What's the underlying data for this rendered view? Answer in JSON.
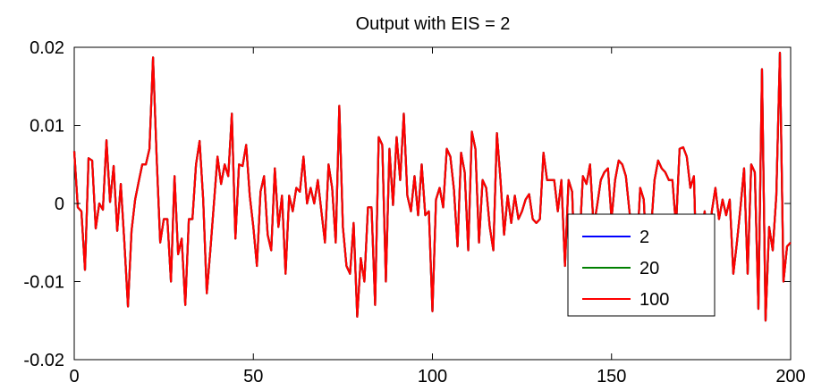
{
  "chart_data": {
    "type": "line",
    "title": "Output with EIS = 2",
    "xlabel": "",
    "ylabel": "",
    "xlim": [
      0,
      200
    ],
    "ylim": [
      -0.02,
      0.02
    ],
    "xticks": [
      0,
      50,
      100,
      150,
      200
    ],
    "xtick_labels": [
      "0",
      "50",
      "100",
      "150",
      "200"
    ],
    "yticks": [
      -0.02,
      -0.01,
      0,
      0.01,
      0.02
    ],
    "ytick_labels": [
      "-0.02",
      "-0.01",
      "0",
      "0.01",
      "0.02"
    ],
    "grid": false,
    "legend_position": "lower-right",
    "x_start": 0,
    "x_step": 1,
    "series": [
      {
        "name": "2",
        "color": "#0000ff",
        "values": [
          0.0067,
          -0.0005,
          -0.001,
          -0.0085,
          0.0058,
          0.0055,
          -0.0032,
          0.0,
          -0.0008,
          0.0081,
          0.0002,
          0.0048,
          -0.0035,
          0.0025,
          -0.005,
          -0.0132,
          -0.0035,
          0.0005,
          0.0028,
          0.005,
          0.005,
          0.007,
          0.0187,
          0.006,
          -0.005,
          -0.002,
          -0.002,
          -0.01,
          0.0035,
          -0.0065,
          -0.0045,
          -0.013,
          -0.002,
          -0.002,
          0.005,
          0.008,
          0.0005,
          -0.0115,
          -0.006,
          0.0,
          0.006,
          0.0025,
          0.005,
          0.0035,
          0.0115,
          -0.0045,
          0.005,
          0.0048,
          0.0075,
          0.001,
          -0.003,
          -0.008,
          0.0015,
          0.0035,
          -0.004,
          -0.006,
          0.0045,
          -0.003,
          0.001,
          -0.009,
          0.001,
          -0.001,
          0.002,
          0.0015,
          0.006,
          0.0,
          0.002,
          0.0,
          0.003,
          -0.001,
          -0.005,
          0.005,
          0.002,
          -0.005,
          0.0125,
          -0.003,
          -0.008,
          -0.009,
          -0.0025,
          -0.0145,
          -0.007,
          -0.01,
          -0.0005,
          -0.0005,
          -0.013,
          0.0085,
          0.0075,
          -0.01,
          0.007,
          -0.0002,
          0.0085,
          0.003,
          0.0115,
          0.001,
          -0.001,
          0.0035,
          -0.0015,
          0.005,
          -0.0015,
          -0.001,
          -0.0138,
          0.0005,
          0.002,
          -0.0005,
          0.007,
          0.006,
          0.0018,
          -0.0055,
          0.0065,
          0.004,
          -0.006,
          0.0092,
          0.007,
          -0.005,
          0.003,
          0.002,
          -0.003,
          -0.006,
          0.009,
          0.003,
          -0.004,
          0.001,
          -0.0025,
          0.001,
          -0.002,
          -0.001,
          0.0005,
          0.0012,
          -0.002,
          -0.0025,
          -0.002,
          0.0065,
          0.003,
          0.003,
          0.003,
          -0.001,
          0.003,
          -0.008,
          0.003,
          0.0015,
          -0.0115,
          -0.0055,
          0.0035,
          0.0025,
          0.005,
          -0.003,
          -0.0002,
          0.003,
          0.004,
          0.0045,
          -0.002,
          0.003,
          0.0055,
          0.005,
          0.0035,
          -0.001,
          -0.0045,
          -0.007,
          0.002,
          0.0005,
          -0.009,
          -0.0035,
          0.003,
          0.0055,
          0.0045,
          0.004,
          0.003,
          0.003,
          -0.003,
          0.007,
          0.0072,
          0.006,
          0.002,
          0.0035,
          -0.013,
          -0.004,
          -0.001,
          -0.007,
          -0.001,
          0.002,
          -0.002,
          0.0005,
          -0.0015,
          0.0005,
          -0.009,
          -0.005,
          -0.0005,
          0.0045,
          -0.009,
          0.005,
          0.004,
          -0.0135,
          0.0172,
          -0.015,
          -0.003,
          -0.006,
          0.001,
          0.0193,
          -0.01,
          -0.0055,
          -0.005
        ]
      },
      {
        "name": "20",
        "color": "#008000",
        "values": [
          0.0067,
          -0.0005,
          -0.001,
          -0.0085,
          0.0058,
          0.0055,
          -0.0032,
          0.0,
          -0.0008,
          0.0081,
          0.0002,
          0.0048,
          -0.0035,
          0.0025,
          -0.005,
          -0.0132,
          -0.0035,
          0.0005,
          0.0028,
          0.005,
          0.005,
          0.007,
          0.0187,
          0.006,
          -0.005,
          -0.002,
          -0.002,
          -0.01,
          0.0035,
          -0.0065,
          -0.0045,
          -0.013,
          -0.002,
          -0.002,
          0.005,
          0.008,
          0.0005,
          -0.0115,
          -0.006,
          0.0,
          0.006,
          0.0025,
          0.005,
          0.0035,
          0.0115,
          -0.0045,
          0.005,
          0.0048,
          0.0075,
          0.001,
          -0.003,
          -0.008,
          0.0015,
          0.0035,
          -0.004,
          -0.006,
          0.0045,
          -0.003,
          0.001,
          -0.009,
          0.001,
          -0.001,
          0.002,
          0.0015,
          0.006,
          0.0,
          0.002,
          0.0,
          0.003,
          -0.001,
          -0.005,
          0.005,
          0.002,
          -0.005,
          0.0125,
          -0.003,
          -0.008,
          -0.009,
          -0.0025,
          -0.0145,
          -0.007,
          -0.01,
          -0.0005,
          -0.0005,
          -0.013,
          0.0085,
          0.0075,
          -0.01,
          0.007,
          -0.0002,
          0.0085,
          0.003,
          0.0115,
          0.001,
          -0.001,
          0.0035,
          -0.0015,
          0.005,
          -0.0015,
          -0.001,
          -0.0138,
          0.0005,
          0.002,
          -0.0005,
          0.007,
          0.006,
          0.0018,
          -0.0055,
          0.0065,
          0.004,
          -0.006,
          0.0092,
          0.007,
          -0.005,
          0.003,
          0.002,
          -0.003,
          -0.006,
          0.009,
          0.003,
          -0.004,
          0.001,
          -0.0025,
          0.001,
          -0.002,
          -0.001,
          0.0005,
          0.0012,
          -0.002,
          -0.0025,
          -0.002,
          0.0065,
          0.003,
          0.003,
          0.003,
          -0.001,
          0.003,
          -0.008,
          0.003,
          0.0015,
          -0.0115,
          -0.0055,
          0.0035,
          0.0025,
          0.005,
          -0.003,
          -0.0002,
          0.003,
          0.004,
          0.0045,
          -0.002,
          0.003,
          0.0055,
          0.005,
          0.0035,
          -0.001,
          -0.0045,
          -0.007,
          0.002,
          0.0005,
          -0.009,
          -0.0035,
          0.003,
          0.0055,
          0.0045,
          0.004,
          0.003,
          0.003,
          -0.003,
          0.007,
          0.0072,
          0.006,
          0.002,
          0.0035,
          -0.013,
          -0.004,
          -0.001,
          -0.007,
          -0.001,
          0.002,
          -0.002,
          0.0005,
          -0.0015,
          0.0005,
          -0.009,
          -0.005,
          -0.0005,
          0.0045,
          -0.009,
          0.005,
          0.004,
          -0.0135,
          0.0172,
          -0.015,
          -0.003,
          -0.006,
          0.001,
          0.0193,
          -0.01,
          -0.0055,
          -0.005
        ]
      },
      {
        "name": "100",
        "color": "#ff0000",
        "values": [
          0.0067,
          -0.0005,
          -0.001,
          -0.0085,
          0.0058,
          0.0055,
          -0.0032,
          0.0,
          -0.0008,
          0.0081,
          0.0002,
          0.0048,
          -0.0035,
          0.0025,
          -0.005,
          -0.0132,
          -0.0035,
          0.0005,
          0.0028,
          0.005,
          0.005,
          0.007,
          0.0187,
          0.006,
          -0.005,
          -0.002,
          -0.002,
          -0.01,
          0.0035,
          -0.0065,
          -0.0045,
          -0.013,
          -0.002,
          -0.002,
          0.005,
          0.008,
          0.0005,
          -0.0115,
          -0.006,
          0.0,
          0.006,
          0.0025,
          0.005,
          0.0035,
          0.0115,
          -0.0045,
          0.005,
          0.0048,
          0.0075,
          0.001,
          -0.003,
          -0.008,
          0.0015,
          0.0035,
          -0.004,
          -0.006,
          0.0045,
          -0.003,
          0.001,
          -0.009,
          0.001,
          -0.001,
          0.002,
          0.0015,
          0.006,
          0.0,
          0.002,
          0.0,
          0.003,
          -0.001,
          -0.005,
          0.005,
          0.002,
          -0.005,
          0.0125,
          -0.003,
          -0.008,
          -0.009,
          -0.0025,
          -0.0145,
          -0.007,
          -0.01,
          -0.0005,
          -0.0005,
          -0.013,
          0.0085,
          0.0075,
          -0.01,
          0.007,
          -0.0002,
          0.0085,
          0.003,
          0.0115,
          0.001,
          -0.001,
          0.0035,
          -0.0015,
          0.005,
          -0.0015,
          -0.001,
          -0.0138,
          0.0005,
          0.002,
          -0.0005,
          0.007,
          0.006,
          0.0018,
          -0.0055,
          0.0065,
          0.004,
          -0.006,
          0.0092,
          0.007,
          -0.005,
          0.003,
          0.002,
          -0.003,
          -0.006,
          0.009,
          0.003,
          -0.004,
          0.001,
          -0.0025,
          0.001,
          -0.002,
          -0.001,
          0.0005,
          0.0012,
          -0.002,
          -0.0025,
          -0.002,
          0.0065,
          0.003,
          0.003,
          0.003,
          -0.001,
          0.003,
          -0.008,
          0.003,
          0.0015,
          -0.0115,
          -0.0055,
          0.0035,
          0.0025,
          0.005,
          -0.003,
          -0.0002,
          0.003,
          0.004,
          0.0045,
          -0.002,
          0.003,
          0.0055,
          0.005,
          0.0035,
          -0.001,
          -0.0045,
          -0.007,
          0.002,
          0.0005,
          -0.009,
          -0.0035,
          0.003,
          0.0055,
          0.0045,
          0.004,
          0.003,
          0.003,
          -0.003,
          0.007,
          0.0072,
          0.006,
          0.002,
          0.0035,
          -0.013,
          -0.004,
          -0.001,
          -0.007,
          -0.001,
          0.002,
          -0.002,
          0.0005,
          -0.0015,
          0.0005,
          -0.009,
          -0.005,
          -0.0005,
          0.0045,
          -0.009,
          0.005,
          0.004,
          -0.0135,
          0.0172,
          -0.015,
          -0.003,
          -0.006,
          0.001,
          0.0193,
          -0.01,
          -0.0055,
          -0.005
        ]
      }
    ]
  }
}
